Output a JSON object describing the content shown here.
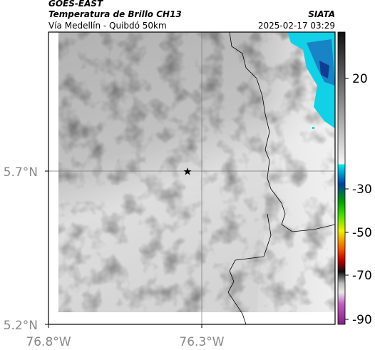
{
  "header": {
    "title": "GOES-EAST",
    "subtitle": "Temperatura de Brillo CH13",
    "region": "Vía Medellín - Quibdó 50km",
    "source": "SIATA",
    "timestamp": "2025-02-17 03:29"
  },
  "map": {
    "x_tick_labels": [
      "76.8°W",
      "76.3°W"
    ],
    "y_tick_labels": [
      "5.7°N",
      "5.2°N"
    ]
  },
  "colorbar": {
    "tick_labels": [
      "20",
      "-30",
      "-50",
      "-70",
      "-90"
    ]
  }
}
